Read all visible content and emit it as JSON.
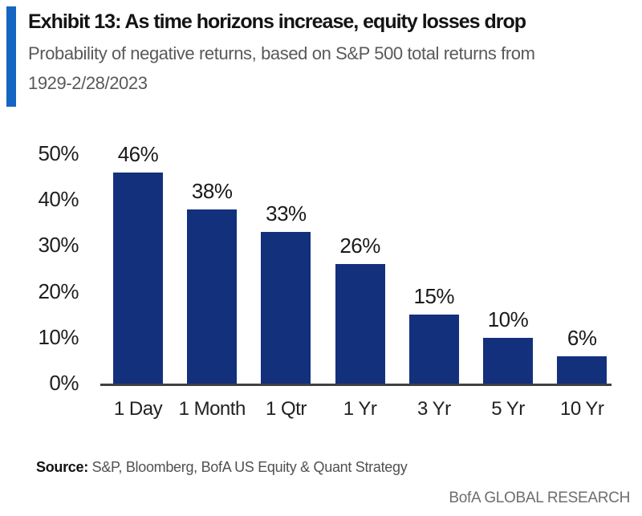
{
  "header": {
    "title": "Exhibit 13: As time horizons increase, equity losses drop",
    "subtitle_line1": "Probability of negative returns, based on S&P 500 total returns from",
    "subtitle_line2": "1929-2/28/2023",
    "accent_color": "#1565c2"
  },
  "chart_data": {
    "type": "bar",
    "title": "Exhibit 13: As time horizons increase, equity losses drop",
    "subtitle": "Probability of negative returns, based on S&P 500 total returns from 1929-2/28/2023",
    "categories": [
      "1 Day",
      "1 Month",
      "1 Qtr",
      "1 Yr",
      "3 Yr",
      "5 Yr",
      "10 Yr"
    ],
    "values": [
      46,
      38,
      33,
      26,
      15,
      10,
      6
    ],
    "value_labels": [
      "46%",
      "38%",
      "33%",
      "26%",
      "15%",
      "10%",
      "6%"
    ],
    "y_ticks": [
      {
        "value": 50,
        "label": "50%"
      },
      {
        "value": 40,
        "label": "40%"
      },
      {
        "value": 30,
        "label": "30%"
      },
      {
        "value": 20,
        "label": "20%"
      },
      {
        "value": 10,
        "label": "10%"
      },
      {
        "value": 0,
        "label": "0%"
      }
    ],
    "xlabel": "",
    "ylabel": "",
    "ylim": [
      0,
      50
    ],
    "grid": false,
    "legend": false,
    "bar_color": "#13307d",
    "axis_color": "#404040"
  },
  "footer": {
    "source_label": "Source:",
    "source_text": " S&P, Bloomberg, BofA US Equity & Quant Strategy",
    "brand": "BofA GLOBAL RESEARCH"
  }
}
